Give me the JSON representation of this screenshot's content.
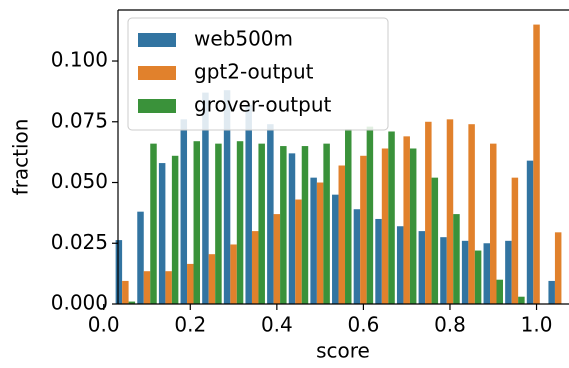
{
  "chart_data": {
    "type": "grouped_bar",
    "x_label": "score",
    "y_label": "fraction",
    "x": [
      0.05,
      0.1,
      0.15,
      0.2,
      0.25,
      0.3,
      0.35,
      0.4,
      0.45,
      0.5,
      0.55,
      0.6,
      0.65,
      0.7,
      0.75,
      0.8,
      0.85,
      0.9,
      0.95,
      1.0,
      1.05
    ],
    "series": [
      {
        "name": "web500m",
        "color": "#3274a1",
        "values": [
          0.0263,
          0.038,
          0.058,
          0.076,
          0.087,
          0.088,
          0.082,
          0.074,
          0.062,
          0.052,
          0.045,
          0.039,
          0.035,
          0.032,
          0.03,
          0.0275,
          0.026,
          0.025,
          0.026,
          0.059,
          0.0095
        ]
      },
      {
        "name": "gpt2-output",
        "color": "#e1812c",
        "values": [
          0.0095,
          0.0135,
          0.0135,
          0.0165,
          0.0205,
          0.0245,
          0.03,
          0.037,
          0.043,
          0.05,
          0.057,
          0.061,
          0.064,
          0.069,
          0.075,
          0.076,
          0.074,
          0.066,
          0.052,
          0.115,
          0.0295
        ]
      },
      {
        "name": "grover-output",
        "color": "#3a923a",
        "values": [
          0.001,
          0.066,
          0.061,
          0.067,
          0.066,
          0.067,
          0.066,
          0.065,
          0.065,
          0.066,
          0.072,
          0.073,
          0.071,
          0.064,
          0.052,
          0.037,
          0.022,
          0.01,
          0.003,
          0,
          0
        ]
      }
    ],
    "xlim": [
      0.033,
      1.075
    ],
    "ylim": [
      0,
      0.121
    ],
    "xticks": [
      {
        "value": 0,
        "label": "0.0"
      },
      {
        "value": 0.2,
        "label": "0.2"
      },
      {
        "value": 0.4,
        "label": "0.4"
      },
      {
        "value": 0.6,
        "label": "0.6"
      },
      {
        "value": 0.8,
        "label": "0.8"
      },
      {
        "value": 1,
        "label": "1.0"
      }
    ],
    "yticks": [
      {
        "value": 0,
        "label": "0.000"
      },
      {
        "value": 0.025,
        "label": "0.025"
      },
      {
        "value": 0.05,
        "label": "0.050"
      },
      {
        "value": 0.075,
        "label": "0.075"
      },
      {
        "value": 0.1,
        "label": "0.100"
      }
    ],
    "bar_width": 0.015,
    "legend": "upper left"
  }
}
